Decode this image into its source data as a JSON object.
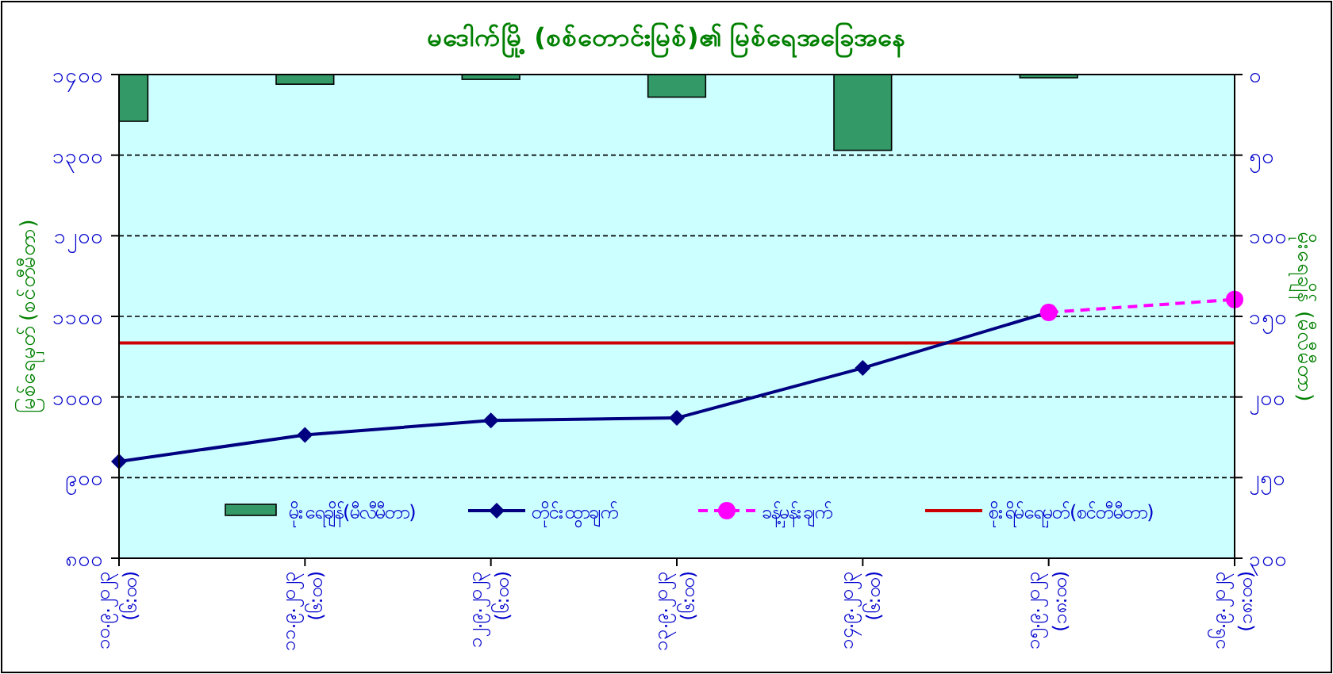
{
  "chart_data": {
    "type": "line",
    "title": "မဒေါက်မြို့ (စစ်တောင်းမြစ်)၏ မြစ်ရေအခြေအနေ",
    "ylabel": "မြစ်ရေမှတ် (စင်တီမီတာ)",
    "y2label": "မိုးရေချိန် (မီလီမီတာ)",
    "categories": [
      "၁၀.၉.၂၀၂၃\n(၆:၀၀)",
      "၁၁.၉.၂၀၂၃\n(၆:၀၀)",
      "၁၂.၉.၂၀၂၃\n(၆:၀၀)",
      "၁၃.၉.၂၀၂၃\n(၆:၀၀)",
      "၁၄.၉.၂၀၂၃\n(၆:၀၀)",
      "၁၅.၉.၂၀၂၃\n(၁၈:၀၀)",
      "၁၆.၉.၂၀၂၃\n(၁၈:၀၀)"
    ],
    "series": [
      {
        "name": "မိုးရေချိန်(မီလီမီတာ)",
        "type": "bar",
        "axis": "y2",
        "color": "#339966",
        "values": [
          29,
          6,
          3,
          14,
          47,
          2,
          null
        ]
      },
      {
        "name": "တိုင်းထွာချက်",
        "color": "#000080",
        "marker": "diamond",
        "line_style": "solid",
        "values": [
          920,
          953,
          971,
          974,
          1036,
          1105,
          null
        ]
      },
      {
        "name": "ခန့်မှန်းချက်",
        "color": "#ff00ff",
        "marker": "circle",
        "line_style": "dashed",
        "values": [
          null,
          null,
          null,
          null,
          null,
          1105,
          1121
        ]
      }
    ],
    "ref_lines": [
      {
        "axis": "y",
        "value": 1067,
        "label": "စိုးရိမ်ရေမှတ်(စင်တီမီတာ)",
        "color": "#cc0000",
        "line_style": "solid"
      }
    ],
    "ylim": [
      800,
      1400
    ],
    "yticks": [
      {
        "value": 800,
        "label": "၈၀၀"
      },
      {
        "value": 900,
        "label": "၉၀၀"
      },
      {
        "value": 1000,
        "label": "၁၀၀၀"
      },
      {
        "value": 1100,
        "label": "၁၁၀၀"
      },
      {
        "value": 1200,
        "label": "၁၂၀၀"
      },
      {
        "value": 1300,
        "label": "၁၃၀၀"
      },
      {
        "value": 1400,
        "label": "၁၄၀၀"
      }
    ],
    "y2lim": [
      300,
      0
    ],
    "y2ticks": [
      {
        "value": 0,
        "label": "၀"
      },
      {
        "value": 50,
        "label": "၅၀"
      },
      {
        "value": 100,
        "label": "၁၀၀"
      },
      {
        "value": 150,
        "label": "၁၅၀"
      },
      {
        "value": 200,
        "label": "၂၀၀"
      },
      {
        "value": 250,
        "label": "၂၅၀"
      },
      {
        "value": 300,
        "label": "၃၀၀"
      }
    ],
    "grid": "y",
    "legend": "bottom"
  }
}
